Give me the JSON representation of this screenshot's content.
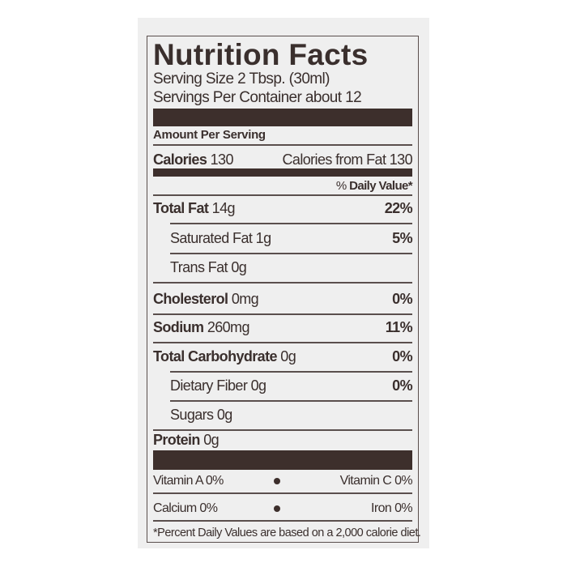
{
  "title": "Nutrition Facts",
  "serving_size": "Serving Size 2 Tbsp. (30ml)",
  "servings_per_container": "Servings Per Container about 12",
  "amount_per_serving": "Amount Per Serving",
  "calories": {
    "label": "Calories",
    "value": "130",
    "from_fat": "Calories from Fat 130"
  },
  "daily_value_header": {
    "prefix": "% ",
    "label": "Daily Value*"
  },
  "nutrients": [
    {
      "label": "Total Fat",
      "amount": "14g",
      "dv": "22%"
    },
    {
      "label": "Saturated Fat",
      "amount": "1g",
      "dv": "5%"
    },
    {
      "label": "Trans Fat",
      "amount": "0g",
      "dv": ""
    },
    {
      "label": "Cholesterol",
      "amount": "0mg",
      "dv": "0%"
    },
    {
      "label": "Sodium",
      "amount": "260mg",
      "dv": "11%"
    },
    {
      "label": "Total Carbohydrate",
      "amount": "0g",
      "dv": "0%"
    },
    {
      "label": "Dietary Fiber",
      "amount": "0g",
      "dv": "0%"
    },
    {
      "label": "Sugars",
      "amount": "0g",
      "dv": ""
    },
    {
      "label": "Protein",
      "amount": "0g",
      "dv": ""
    }
  ],
  "vitamins": [
    {
      "left": "Vitamin A  0%",
      "right": "Vitamin C  0%"
    },
    {
      "left": "Calcium  0%",
      "right": "Iron  0%"
    }
  ],
  "footnote": "*Percent Daily Values are based on a 2,000 calorie diet.",
  "colors": {
    "ink": "#3d2f2c",
    "panel": "#efefef"
  }
}
